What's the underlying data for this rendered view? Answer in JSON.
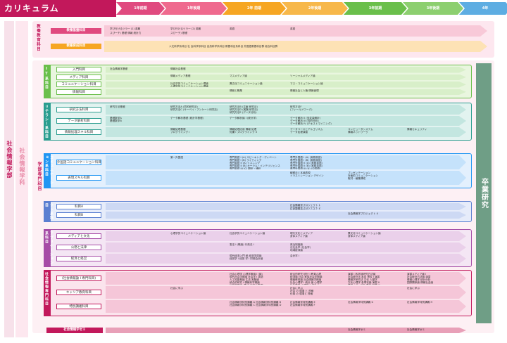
{
  "title": "カリキュラム",
  "years": [
    "1年前期",
    "1年後期",
    "2年 前期",
    "2年後期",
    "3年前期",
    "3年後期",
    "4年"
  ],
  "colors": {
    "pink": "#c2185b",
    "orange": "#f6a623",
    "green": "#6abf4b",
    "teal": "#2a9d8f",
    "blue": "#2196f3",
    "purple": "#8e44ad",
    "magenta": "#c2185b",
    "graduation": "#6f9e86"
  },
  "side": {
    "faculty": "社会情報学部",
    "dept": "社会情報学科",
    "major": "学部専門科目"
  },
  "graduation": "卒業研究",
  "kyoyo": {
    "label": "教養教育科目",
    "rows": [
      {
        "name": "教養基盤科目",
        "c1": "学び行けるツラ一 (1)  英難\nスぴーチ) 基礎 情報 統計力",
        "c2": "学び行けるツラ一 (2)  英難\nスぴーチ) 基礎",
        "c3": "英語",
        "c4": "英語"
      },
      {
        "name": "教養育成科目",
        "c1": "人文科学系科目  社  会科学系科目  自然科学系科目  教養科目系科目  外国語教養科目群  総合科目群"
      }
    ]
  },
  "groups": [
    {
      "key": "it",
      "label": "IT系科目",
      "rows": [
        {
          "name": "入門科目",
          "cells": [
            "社会情報学基礎",
            "情報社会基礎"
          ]
        },
        {
          "name": "メディア科目",
          "cells": [
            "",
            "情報メディア基礎",
            "マスメディア論",
            "ソーシャルメディア論"
          ]
        },
        {
          "name": "コミュニケーション科目",
          "cells": [
            "",
            "社会学的コミュニケーション理論\n心理学的コミュニケーション理論",
            "異文化コミュニケーション論",
            "マス・コミュニケーション論"
          ]
        },
        {
          "name": "情報科目",
          "cells": [
            "",
            "",
            "情報と職業",
            "情報社会と人権  情報倫理"
          ]
        }
      ]
    },
    {
      "key": "lit",
      "label": "リテラシー系科目",
      "rows": [
        {
          "name": "研究方法科目",
          "cells": [
            "研究方法基礎",
            "研究方法A (質的研究法)\n研究方法C (サーベイ・アンケート研究法)",
            "研究方法B (文献  研究法)\n研究方法D (実験  研究法)\n研究方法E (データ分析)",
            "研究方法F\n(フィールドワーク)"
          ]
        },
        {
          "name": "データ解析科目",
          "cells": [
            "基礎数学A\n基礎数学B",
            "データ解析基礎 (統計学基礎)",
            "データ解析論 I (統計学)",
            "データ解析 II (多変量解析)\nデータ解析 III (質的分析)\nデータ解析 IV (テキストマイニング)"
          ]
        },
        {
          "name": "情報処理スキル科目",
          "cells": [
            "",
            "情報処理基礎\nプログラミング I",
            "情報処理応用  情報 処理\n知識 I  プログラミング II",
            "データベースとアルゴリズム\nデータ処理演習",
            "コンピュータシステム\n情報ネットワーク",
            "情報セキュリティ"
          ]
        }
      ]
    },
    {
      "key": "com",
      "label": "コミュニケーション系科目",
      "rows": [
        {
          "name": "外国語コミュニケーション科目",
          "cells": [
            "",
            "第一外国語",
            "専門英語 I (A)  スピーキング・ディベート\n専門英語 I (B)  ライティング\n専門英語 II (A)  リスニング\n専門英語 II (B)  オーラル・インテリジェンス\n専門英語 III (C)  翻訳・通訳",
            "専門外国語 I (A)  (実務英語)\n専門外国語 I (B)  (実務英語)\n専門外国語 II (A)  (実務英語)\n専門外国語 II (B)  (実務英語)\n専門外国語 III (A)  (中国語)"
          ]
        },
        {
          "name": "表現スキル科目",
          "cells": [
            "",
            "",
            "",
            "観察法と本論表現\nイラストレーション デザイン",
            "プレゼンテーション\n対面的コミュニケーション\n取材・編集構成"
          ]
        }
      ]
    },
    {
      "key": "proj",
      "label": "プロジェクト系科目",
      "rows": [
        {
          "name": "科目A",
          "cells": [
            "",
            "",
            "",
            "社会情報学プロジェクト 1\n社会情報学プロジェクト 2\n社会情報学プロジェクト 3"
          ]
        },
        {
          "name": "科目B",
          "cells": [
            "",
            "",
            "",
            "",
            "社会情報学プロジェクト 4"
          ]
        }
      ]
    },
    {
      "key": "app",
      "label": "アプリケーション系科目",
      "rows": [
        {
          "name": "メディアと文化",
          "cells": [
            "",
            "心理学的コミュニケーション論",
            "社会学的コミュニケーション論",
            "現代文化とメディア\n身体メディア論",
            "異文化コミュニケーション論\n身体メディア論"
          ]
        },
        {
          "name": "公務と法律",
          "cells": [
            "",
            "",
            "憲法 I  (概論)  行政法 I",
            "政治制度論\n法社会学 (社会学)\n地域経済論"
          ]
        },
        {
          "name": "経済と経営",
          "cells": [
            "",
            "",
            "現代経済入門  統  経済学原論\n経営学 I  経営 学 I  財務会計論",
            "会計学 I"
          ]
        }
      ]
    },
    {
      "key": "sp",
      "label": "社会情報専門科目",
      "rows": [
        {
          "name": "(社会情報論 I 専門科目)",
          "cells": [
            "",
            "",
            "社会心理学  心理学概論 I (論)\n現代社会学概論  社会学 I  英語\n人工知能概論  生活 実験論\n統合的研究 I  情報科学概論\n行政学概論 (思 社会学の基礎)\nマーケティング論",
            "統合的研究  統計 I  教育心理\n経済論 社会 家族社会学概論\n情報教育論  社会情報学概論\n社会心理学 I 統計 論 心理学\n社会情報 心理学 II 統計 II\n知能情報論  社会心理学",
            "演習 I  各学部研究方法論\n社会統計法 各目 専攻 I 演習\n情報学研究法  文化 人類学\n文化心理学 各専攻論  演習 II\n情報メディア系  専攻 演習 III\n社会 メディア論 社会統計学",
            "演習メディア論 I\n社会統計方法論 演習\n情報心理学  統計分析\n国際関係論  情報社会論"
          ]
        },
        {
          "name": "キャリア教育科目",
          "cells": [
            "",
            "社会に学ぶ",
            "",
            "社会に学ぶ\n社会 の 現場 と 資格\n仕事 の 現場と 資格",
            "",
            "社会に学ぶ"
          ]
        },
        {
          "name": "特別講義科目",
          "cells": [
            "",
            "",
            "社会情報学特別講義 A  社会情報学特別講義 B\n社会情報学特別講義 C  社会情報学特別講義 D",
            "社会情報学特別講義 E\n社会情報学特別講義 F",
            "社会情報学特別講義 G",
            "社会情報学特別講義 H"
          ]
        }
      ]
    }
  ],
  "seminar": {
    "label": "社会情報学ゼミ",
    "cells": [
      "社会情報学ゼミ",
      "社会情報学ゼミ"
    ]
  }
}
